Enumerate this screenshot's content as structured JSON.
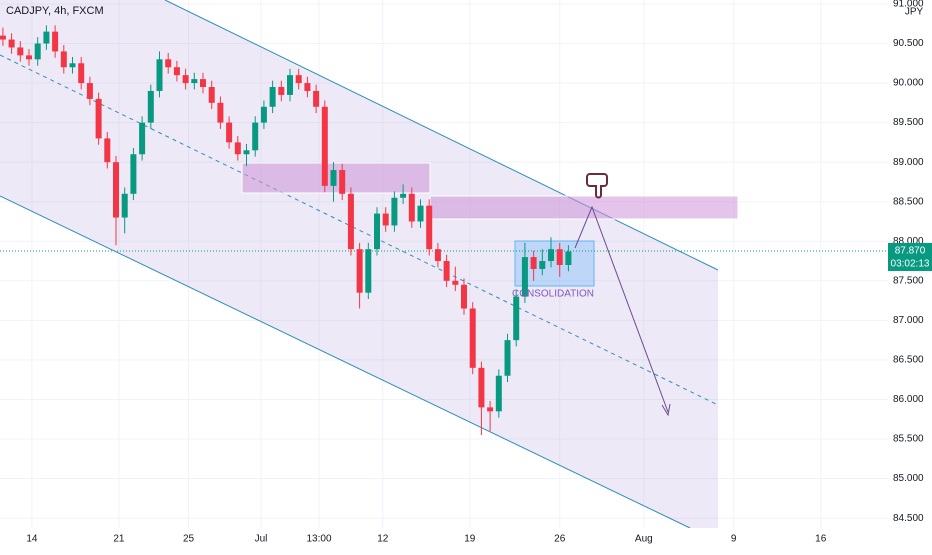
{
  "chart_data": {
    "type": "candlestick",
    "title": "CADJPY, 4h, FXCM",
    "y_axis_label": "JPY",
    "annotation": "CONSOLIDATION",
    "last_price": {
      "value": 87.87,
      "label": "87.870"
    },
    "countdown": "03:02:13",
    "up_color": "#089981",
    "down_color": "#f23645",
    "xlim": [
      0,
      306.2
    ],
    "ylim": [
      84.375,
      91.05
    ],
    "xticks": [
      {
        "value": 11,
        "label": "14"
      },
      {
        "value": 41,
        "label": "21"
      },
      {
        "value": 65,
        "label": "25"
      },
      {
        "value": 90,
        "label": "Jul"
      },
      {
        "value": 110,
        "label": "13:00"
      },
      {
        "value": 132,
        "label": "12"
      },
      {
        "value": 162,
        "label": "19"
      },
      {
        "value": 193,
        "label": "26"
      },
      {
        "value": 222,
        "label": "Aug"
      },
      {
        "value": 253,
        "label": "9"
      },
      {
        "value": 283,
        "label": "16"
      }
    ],
    "yticks": [
      {
        "value": 84.5,
        "label": "84.500"
      },
      {
        "value": 85,
        "label": "85.000"
      },
      {
        "value": 85.5,
        "label": "85.500"
      },
      {
        "value": 86,
        "label": "86.000"
      },
      {
        "value": 86.5,
        "label": "86.500"
      },
      {
        "value": 87,
        "label": "87.000"
      },
      {
        "value": 87.5,
        "label": "87.500"
      },
      {
        "value": 88,
        "label": "88.000"
      },
      {
        "value": 88.5,
        "label": "88.500"
      },
      {
        "value": 89,
        "label": "89.000"
      },
      {
        "value": 89.5,
        "label": "89.500"
      },
      {
        "value": 90,
        "label": "90.000"
      },
      {
        "value": 90.5,
        "label": "90.500"
      },
      {
        "value": 91,
        "label": "91.000"
      }
    ],
    "x": [
      1,
      4,
      7,
      10,
      13,
      16,
      19,
      22,
      25,
      28,
      31,
      34,
      37,
      40,
      43,
      46,
      49,
      52,
      55,
      58,
      61,
      64,
      67,
      70,
      73,
      76,
      79,
      82,
      85,
      88,
      91,
      94,
      97,
      100,
      103,
      106,
      109,
      112,
      115,
      118,
      121,
      124,
      127,
      130,
      133,
      136,
      139,
      142,
      145,
      148,
      151,
      154,
      157,
      160,
      163,
      166,
      169,
      172,
      175,
      178,
      181,
      184,
      187,
      190,
      193,
      196
    ],
    "open": [
      90.6,
      90.55,
      90.45,
      90.35,
      90.3,
      90.5,
      90.65,
      90.4,
      90.2,
      90.25,
      90.0,
      89.8,
      89.3,
      89.0,
      88.3,
      88.6,
      89.1,
      89.5,
      89.9,
      90.3,
      90.2,
      90.1,
      90.0,
      90.05,
      89.95,
      89.75,
      89.5,
      89.25,
      89.1,
      89.15,
      89.5,
      89.7,
      89.95,
      89.85,
      90.1,
      90.0,
      89.9,
      89.7,
      88.7,
      88.9,
      88.6,
      87.9,
      87.35,
      87.9,
      88.35,
      88.2,
      88.55,
      88.6,
      88.25,
      88.45,
      87.9,
      87.75,
      87.5,
      87.45,
      87.15,
      86.4,
      85.9,
      85.85,
      86.3,
      86.75,
      87.3,
      87.8,
      87.65,
      87.75,
      87.9,
      87.7
    ],
    "high": [
      90.7,
      90.63,
      90.53,
      90.43,
      90.58,
      90.73,
      90.73,
      90.48,
      90.33,
      90.33,
      90.08,
      89.88,
      89.38,
      89.08,
      88.68,
      89.18,
      89.58,
      89.98,
      90.4,
      90.38,
      90.28,
      90.18,
      90.13,
      90.13,
      90.03,
      89.83,
      89.58,
      89.33,
      89.23,
      89.58,
      89.78,
      90.03,
      90.03,
      90.18,
      90.18,
      90.08,
      89.98,
      89.78,
      89.0,
      88.98,
      88.68,
      87.98,
      87.98,
      88.43,
      88.43,
      88.63,
      88.72,
      88.68,
      88.53,
      88.53,
      87.98,
      87.83,
      87.68,
      87.53,
      87.23,
      86.48,
      85.98,
      86.38,
      86.83,
      87.38,
      87.98,
      87.88,
      87.9,
      88.05,
      87.98,
      87.95
    ],
    "low": [
      90.47,
      90.37,
      90.27,
      90.22,
      90.22,
      90.42,
      90.32,
      90.12,
      90.12,
      89.92,
      89.72,
      89.22,
      88.92,
      87.95,
      88.1,
      88.52,
      89.02,
      89.42,
      89.82,
      90.12,
      90.02,
      89.92,
      89.92,
      89.87,
      89.67,
      89.42,
      89.17,
      89.02,
      88.95,
      89.07,
      89.42,
      89.62,
      89.77,
      89.77,
      89.92,
      89.82,
      89.62,
      88.62,
      88.5,
      88.52,
      87.82,
      87.15,
      87.27,
      87.82,
      88.12,
      88.12,
      88.47,
      88.17,
      88.17,
      87.82,
      87.67,
      87.42,
      87.37,
      87.07,
      86.32,
      85.55,
      85.6,
      85.77,
      86.22,
      86.67,
      87.22,
      87.5,
      87.57,
      87.67,
      87.55,
      87.62
    ],
    "close": [
      90.55,
      90.45,
      90.35,
      90.3,
      90.5,
      90.65,
      90.4,
      90.2,
      90.25,
      90.0,
      89.8,
      89.3,
      89.0,
      88.3,
      88.6,
      89.1,
      89.5,
      89.9,
      90.3,
      90.2,
      90.1,
      90.0,
      90.05,
      89.95,
      89.75,
      89.5,
      89.25,
      89.1,
      89.15,
      89.5,
      89.7,
      89.95,
      89.85,
      90.1,
      90.0,
      89.9,
      89.7,
      88.7,
      88.9,
      88.6,
      87.9,
      87.35,
      87.9,
      88.35,
      88.2,
      88.55,
      88.6,
      88.25,
      88.45,
      87.9,
      87.75,
      87.5,
      87.45,
      87.15,
      86.4,
      85.9,
      85.85,
      86.3,
      86.75,
      87.3,
      87.8,
      87.65,
      87.75,
      87.9,
      87.7,
      87.87
    ]
  }
}
